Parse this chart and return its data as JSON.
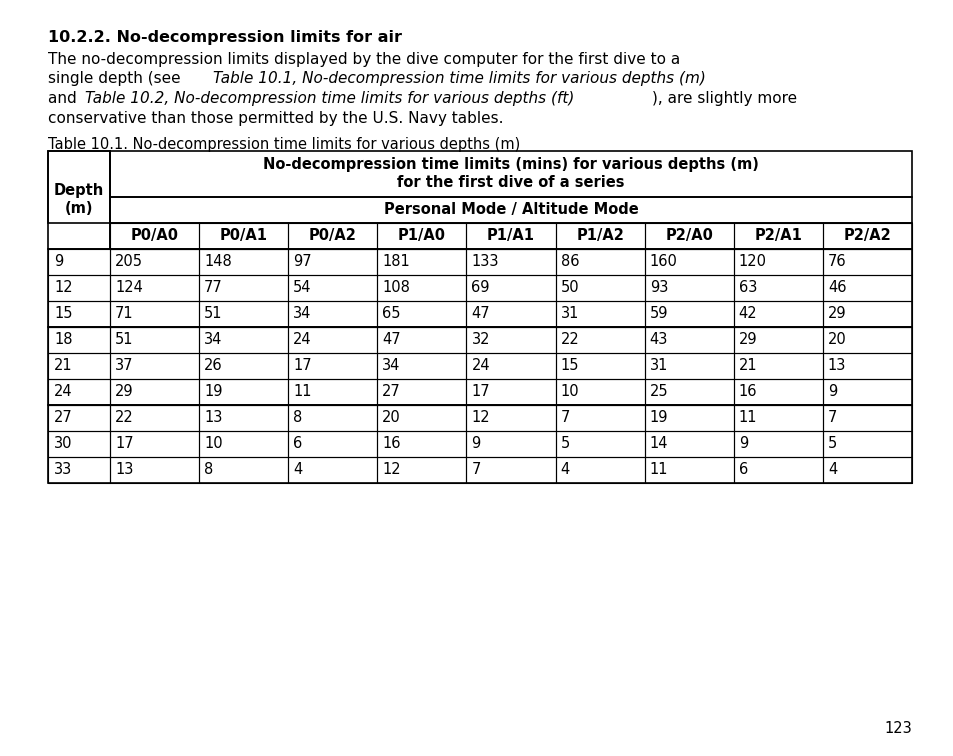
{
  "title_bold": "10.2.2. No-decompression limits for air",
  "para_line1": "The no-decompression limits displayed by the dive computer for the first dive to a",
  "para_line2_normal1": "single depth (see ",
  "para_line2_italic": "Table 10.1, No-decompression time limits for various depths (m)",
  "para_line3_normal1": "and ",
  "para_line3_italic": "Table 10.2, No-decompression time limits for various depths (ft)",
  "para_line3_normal2": "), are slightly more",
  "para_line4": "conservative than those permitted by the U.S. Navy tables.",
  "table_caption": "Table 10.1. No-decompression time limits for various depths (m)",
  "header1_line1": "No-decompression time limits (mins) for various depths (m)",
  "header1_line2": "for the first dive of a series",
  "header2": "Personal Mode / Altitude Mode",
  "col_headers": [
    "P0/A0",
    "P0/A1",
    "P0/A2",
    "P1/A0",
    "P1/A1",
    "P1/A2",
    "P2/A0",
    "P2/A1",
    "P2/A2"
  ],
  "depth_col_header": "Depth\n(m)",
  "row_groups": [
    {
      "depths": [
        "9",
        "12",
        "15"
      ],
      "data": [
        [
          "205",
          "148",
          "97",
          "181",
          "133",
          "86",
          "160",
          "120",
          "76"
        ],
        [
          "124",
          "77",
          "54",
          "108",
          "69",
          "50",
          "93",
          "63",
          "46"
        ],
        [
          "71",
          "51",
          "34",
          "65",
          "47",
          "31",
          "59",
          "42",
          "29"
        ]
      ]
    },
    {
      "depths": [
        "18",
        "21",
        "24"
      ],
      "data": [
        [
          "51",
          "34",
          "24",
          "47",
          "32",
          "22",
          "43",
          "29",
          "20"
        ],
        [
          "37",
          "26",
          "17",
          "34",
          "24",
          "15",
          "31",
          "21",
          "13"
        ],
        [
          "29",
          "19",
          "11",
          "27",
          "17",
          "10",
          "25",
          "16",
          "9"
        ]
      ]
    },
    {
      "depths": [
        "27",
        "30",
        "33"
      ],
      "data": [
        [
          "22",
          "13",
          "8",
          "20",
          "12",
          "7",
          "19",
          "11",
          "7"
        ],
        [
          "17",
          "10",
          "6",
          "16",
          "9",
          "5",
          "14",
          "9",
          "5"
        ],
        [
          "13",
          "8",
          "4",
          "12",
          "7",
          "4",
          "11",
          "6",
          "4"
        ]
      ]
    }
  ],
  "page_number": "123",
  "bg_color": "#ffffff",
  "text_color": "#000000"
}
